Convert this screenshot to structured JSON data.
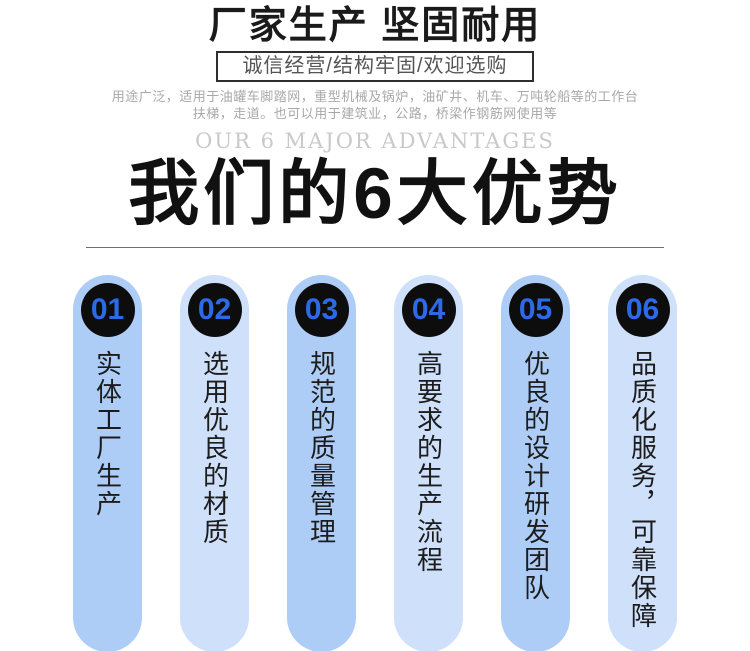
{
  "header": {
    "title": "厂家生产 坚固耐用",
    "slogan": "诚信经营/结构牢固/欢迎选购",
    "description_line1": "用途广泛，适用于油罐车脚踏网，重型机械及锅炉，油矿井、机车、万吨轮船等的工作台",
    "description_line2": "扶梯，走道。也可以用于建筑业，公路，桥梁作钢筋网使用等"
  },
  "advantages_section": {
    "subtitle_en": "OUR 6 MAJOR ADVANTAGES",
    "title": "我们的6大优势",
    "items": [
      {
        "number": "01",
        "label": "实体工厂生产"
      },
      {
        "number": "02",
        "label": "选用优良的材质"
      },
      {
        "number": "03",
        "label": "规范的质量管理"
      },
      {
        "number": "04",
        "label": "高要求的生产流程"
      },
      {
        "number": "05",
        "label": "优良的设计研发团队"
      },
      {
        "number": "06",
        "label": "品质化服务，可靠保障"
      }
    ]
  },
  "colors": {
    "pill_medium": "#adcdf7",
    "pill_light": "#cfe0fa",
    "number_blue": "#2c6be6",
    "circle_black": "#0d0d0d"
  }
}
